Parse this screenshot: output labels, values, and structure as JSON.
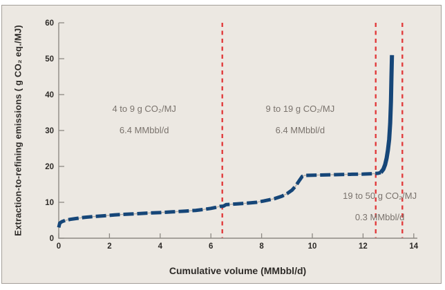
{
  "figure": {
    "colors": {
      "page_bg": "#ffffff",
      "panel_bg": "#ece8e2",
      "panel_border": "#a39e98",
      "axis": "#8d8983",
      "tick_label": "#2e2b28",
      "axis_title": "#2e2b28",
      "annotation_text": "#79726c",
      "curve_blue": "#164678",
      "connector": "#b3aca4",
      "reference_red": "#e13c3d"
    }
  },
  "chart_data": {
    "type": "line",
    "title": "",
    "xlabel": "Cumulative volume (MMbbl/d)",
    "ylabel": "Extraction-to-refining emissions ( g CO₂ eq./MJ)",
    "xlim": [
      0,
      14
    ],
    "ylim": [
      0,
      60
    ],
    "xticks": [
      0,
      2,
      4,
      6,
      8,
      10,
      12,
      14
    ],
    "yticks": [
      0,
      10,
      20,
      30,
      40,
      50,
      60
    ],
    "grid": false,
    "legend": "none",
    "connector_color": "#b3aca4",
    "axis_color": "#8d8983",
    "series": [
      {
        "name": "supply-curve",
        "style": "dashed-thick",
        "color": "#164678",
        "points": [
          [
            0,
            3.0
          ],
          [
            0.04,
            4.2
          ],
          [
            0.12,
            4.6
          ],
          [
            0.25,
            4.95
          ],
          [
            0.45,
            5.25
          ],
          [
            0.7,
            5.5
          ],
          [
            1.0,
            5.8
          ],
          [
            1.4,
            6.05
          ],
          [
            1.8,
            6.25
          ],
          [
            2.2,
            6.5
          ],
          [
            2.6,
            6.65
          ],
          [
            3.0,
            6.8
          ],
          [
            3.5,
            7.0
          ],
          [
            4.0,
            7.15
          ],
          [
            4.5,
            7.35
          ],
          [
            5.0,
            7.55
          ],
          [
            5.4,
            7.75
          ],
          [
            5.7,
            8.0
          ],
          [
            6.0,
            8.3
          ],
          [
            6.2,
            8.6
          ],
          [
            6.35,
            8.85
          ],
          [
            6.5,
            8.95
          ],
          [
            6.6,
            9.35
          ],
          [
            7.0,
            9.55
          ],
          [
            7.4,
            9.75
          ],
          [
            7.8,
            10.0
          ],
          [
            8.1,
            10.4
          ],
          [
            8.5,
            11.0
          ],
          [
            8.8,
            11.7
          ],
          [
            9.0,
            12.4
          ],
          [
            9.2,
            13.4
          ],
          [
            9.35,
            14.6
          ],
          [
            9.5,
            16.2
          ],
          [
            9.6,
            17.2
          ],
          [
            9.7,
            17.5
          ],
          [
            10.3,
            17.6
          ],
          [
            10.9,
            17.7
          ],
          [
            11.5,
            17.8
          ],
          [
            12.0,
            17.85
          ],
          [
            12.35,
            17.95
          ],
          [
            12.6,
            18.1
          ],
          [
            12.7,
            18.3
          ]
        ]
      },
      {
        "name": "supply-curve-spike",
        "style": "solid-thick",
        "color": "#164678",
        "points": [
          [
            12.7,
            18.3
          ],
          [
            12.8,
            19.2
          ],
          [
            12.87,
            20.5
          ],
          [
            12.93,
            22.3
          ],
          [
            12.98,
            24.5
          ],
          [
            13.03,
            27.5
          ],
          [
            13.07,
            32
          ],
          [
            13.1,
            38
          ],
          [
            13.12,
            45
          ],
          [
            13.14,
            51
          ]
        ]
      }
    ],
    "reference_lines": {
      "color": "#e13c3d",
      "style": "dashed-vertical",
      "x_values": [
        6.45,
        12.5,
        13.55
      ]
    },
    "annotations": [
      {
        "line1": "4 to 9 g CO₂/MJ",
        "line2": "6.4 MMbbl/d",
        "x": 3.37,
        "y1": 36,
        "y2": 30
      },
      {
        "line1": "9 to 19 g CO₂/MJ",
        "line2": "6.4 MMbbl/d",
        "x": 9.52,
        "y1": 36,
        "y2": 30
      },
      {
        "line1": "19 to 50 g CO₂/MJ",
        "line2": "0.3 MMbbl/d",
        "x": 12.66,
        "y1": 11.7,
        "y2": 6.2
      }
    ]
  }
}
